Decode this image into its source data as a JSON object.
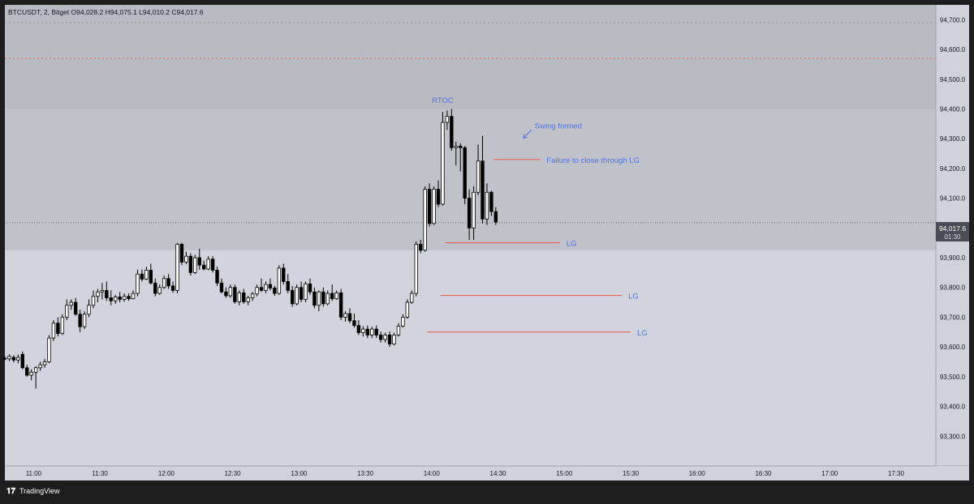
{
  "header": {
    "symbol": "BTCUSDT",
    "interval": "2",
    "exchange": "Bitget",
    "ohlc": "O94,028.2  H94,075.1  L94,010.2  C94,017.6"
  },
  "footer": {
    "brand": "TradingView"
  },
  "colors": {
    "chart_bg": "#d1d4dc",
    "upper_zone": "#c0c2ca",
    "top_zone": "#b9bbc3",
    "axis_bg": "#cfd2da",
    "annotation_blue": "#4a72e8",
    "level_red": "#ef5350",
    "candle_up_fill": "#ffffff",
    "candle_down_fill": "#000000",
    "candle_stroke": "#000000"
  },
  "chart_data": {
    "type": "candlestick",
    "ylim": [
      93200,
      94750
    ],
    "xlim": [
      "10:47",
      "17:48"
    ],
    "price_ticks": [
      "94,700.0",
      "94,600.0",
      "94,500.0",
      "94,400.0",
      "94,300.0",
      "94,200.0",
      "94,100.0",
      "94,000.0",
      "93,900.0",
      "93,800.0",
      "93,700.0",
      "93,600.0",
      "93,500.0",
      "93,400.0",
      "93,300.0"
    ],
    "price_tick_values": [
      94700,
      94600,
      94500,
      94400,
      94300,
      94200,
      94100,
      94000,
      93900,
      93800,
      93700,
      93600,
      93500,
      93400,
      93300
    ],
    "time_ticks": [
      "11:00",
      "11:30",
      "12:00",
      "12:30",
      "13:00",
      "13:30",
      "14:00",
      "14:30",
      "15:00",
      "15:30",
      "16:00",
      "16:30",
      "17:00",
      "17:30"
    ],
    "time_tick_values": [
      "11:00",
      "11:30",
      "12:00",
      "12:30",
      "13:00",
      "13:30",
      "14:00",
      "14:30",
      "15:00",
      "15:30",
      "16:00",
      "16:30",
      "17:00",
      "17:30"
    ],
    "last_price": {
      "label": "94,017.6",
      "countdown": "01:30",
      "value": 94017.6
    },
    "zones": [
      {
        "name": "top-zone",
        "from": 94400,
        "to": 94750
      },
      {
        "name": "upper-zone",
        "from": 93925,
        "to": 94400
      }
    ],
    "dashed_levels": [
      94690,
      94570
    ],
    "levels": [
      {
        "label": "LG",
        "price": 93950,
        "from": "14:06",
        "to": "14:58"
      },
      {
        "label": "LG",
        "price": 93773,
        "from": "14:04",
        "to": "15:26"
      },
      {
        "label": "LG",
        "price": 93650,
        "from": "13:58",
        "to": "15:30"
      },
      {
        "label": "",
        "price": 94230,
        "from": "14:28",
        "to": "14:49"
      }
    ],
    "annotations": [
      {
        "text": "RTOC",
        "time": "14:05",
        "price": 94420
      },
      {
        "text": "Swing formed",
        "time": "14:40",
        "price": 94335
      },
      {
        "text": "Failure to close through LG",
        "time": "14:49",
        "price": 94230
      }
    ],
    "candles": [
      {
        "t": "10:47",
        "o": 93562,
        "h": 93568,
        "l": 93555,
        "c": 93560
      },
      {
        "t": "10:49",
        "o": 93560,
        "h": 93575,
        "l": 93552,
        "c": 93568
      },
      {
        "t": "10:51",
        "o": 93565,
        "h": 93572,
        "l": 93548,
        "c": 93556
      },
      {
        "t": "10:53",
        "o": 93556,
        "h": 93575,
        "l": 93545,
        "c": 93565
      },
      {
        "t": "10:55",
        "o": 93575,
        "h": 93585,
        "l": 93525,
        "c": 93530
      },
      {
        "t": "10:57",
        "o": 93530,
        "h": 93540,
        "l": 93500,
        "c": 93505
      },
      {
        "t": "10:59",
        "o": 93505,
        "h": 93525,
        "l": 93488,
        "c": 93515
      },
      {
        "t": "11:01",
        "o": 93515,
        "h": 93535,
        "l": 93460,
        "c": 93530
      },
      {
        "t": "11:03",
        "o": 93530,
        "h": 93550,
        "l": 93520,
        "c": 93540
      },
      {
        "t": "11:05",
        "o": 93540,
        "h": 93560,
        "l": 93530,
        "c": 93550
      },
      {
        "t": "11:07",
        "o": 93550,
        "h": 93640,
        "l": 93545,
        "c": 93630
      },
      {
        "t": "11:09",
        "o": 93630,
        "h": 93690,
        "l": 93620,
        "c": 93680
      },
      {
        "t": "11:11",
        "o": 93680,
        "h": 93700,
        "l": 93635,
        "c": 93645
      },
      {
        "t": "11:13",
        "o": 93645,
        "h": 93710,
        "l": 93640,
        "c": 93700
      },
      {
        "t": "11:15",
        "o": 93700,
        "h": 93760,
        "l": 93690,
        "c": 93740
      },
      {
        "t": "11:17",
        "o": 93740,
        "h": 93760,
        "l": 93725,
        "c": 93750
      },
      {
        "t": "11:19",
        "o": 93750,
        "h": 93765,
        "l": 93705,
        "c": 93710
      },
      {
        "t": "11:21",
        "o": 93710,
        "h": 93725,
        "l": 93650,
        "c": 93668
      },
      {
        "t": "11:23",
        "o": 93668,
        "h": 93720,
        "l": 93660,
        "c": 93710
      },
      {
        "t": "11:25",
        "o": 93710,
        "h": 93760,
        "l": 93700,
        "c": 93740
      },
      {
        "t": "11:27",
        "o": 93740,
        "h": 93790,
        "l": 93730,
        "c": 93770
      },
      {
        "t": "11:29",
        "o": 93770,
        "h": 93795,
        "l": 93750,
        "c": 93785
      },
      {
        "t": "11:31",
        "o": 93785,
        "h": 93815,
        "l": 93760,
        "c": 93790
      },
      {
        "t": "11:33",
        "o": 93790,
        "h": 93820,
        "l": 93755,
        "c": 93765
      },
      {
        "t": "11:35",
        "o": 93765,
        "h": 93790,
        "l": 93740,
        "c": 93755
      },
      {
        "t": "11:37",
        "o": 93755,
        "h": 93775,
        "l": 93745,
        "c": 93768
      },
      {
        "t": "11:39",
        "o": 93768,
        "h": 93785,
        "l": 93750,
        "c": 93760
      },
      {
        "t": "11:41",
        "o": 93760,
        "h": 93780,
        "l": 93752,
        "c": 93770
      },
      {
        "t": "11:43",
        "o": 93770,
        "h": 93780,
        "l": 93755,
        "c": 93762
      },
      {
        "t": "11:45",
        "o": 93762,
        "h": 93790,
        "l": 93760,
        "c": 93780
      },
      {
        "t": "11:47",
        "o": 93780,
        "h": 93860,
        "l": 93770,
        "c": 93845
      },
      {
        "t": "11:49",
        "o": 93845,
        "h": 93860,
        "l": 93820,
        "c": 93828
      },
      {
        "t": "11:51",
        "o": 93828,
        "h": 93870,
        "l": 93825,
        "c": 93858
      },
      {
        "t": "11:53",
        "o": 93858,
        "h": 93880,
        "l": 93810,
        "c": 93815
      },
      {
        "t": "11:55",
        "o": 93815,
        "h": 93830,
        "l": 93770,
        "c": 93780
      },
      {
        "t": "11:57",
        "o": 93780,
        "h": 93810,
        "l": 93775,
        "c": 93800
      },
      {
        "t": "11:59",
        "o": 93800,
        "h": 93840,
        "l": 93795,
        "c": 93830
      },
      {
        "t": "12:01",
        "o": 93830,
        "h": 93845,
        "l": 93795,
        "c": 93805
      },
      {
        "t": "12:03",
        "o": 93805,
        "h": 93820,
        "l": 93782,
        "c": 93790
      },
      {
        "t": "12:05",
        "o": 93790,
        "h": 93950,
        "l": 93780,
        "c": 93945
      },
      {
        "t": "12:07",
        "o": 93945,
        "h": 93950,
        "l": 93875,
        "c": 93885
      },
      {
        "t": "12:09",
        "o": 93885,
        "h": 93920,
        "l": 93878,
        "c": 93905
      },
      {
        "t": "12:11",
        "o": 93905,
        "h": 93915,
        "l": 93840,
        "c": 93850
      },
      {
        "t": "12:13",
        "o": 93850,
        "h": 93910,
        "l": 93845,
        "c": 93900
      },
      {
        "t": "12:15",
        "o": 93900,
        "h": 93930,
        "l": 93860,
        "c": 93875
      },
      {
        "t": "12:17",
        "o": 93875,
        "h": 93890,
        "l": 93858,
        "c": 93862
      },
      {
        "t": "12:19",
        "o": 93862,
        "h": 93905,
        "l": 93858,
        "c": 93895
      },
      {
        "t": "12:21",
        "o": 93895,
        "h": 93905,
        "l": 93850,
        "c": 93858
      },
      {
        "t": "12:23",
        "o": 93858,
        "h": 93870,
        "l": 93805,
        "c": 93815
      },
      {
        "t": "12:25",
        "o": 93815,
        "h": 93830,
        "l": 93780,
        "c": 93785
      },
      {
        "t": "12:27",
        "o": 93785,
        "h": 93800,
        "l": 93765,
        "c": 93772
      },
      {
        "t": "12:29",
        "o": 93772,
        "h": 93810,
        "l": 93765,
        "c": 93800
      },
      {
        "t": "12:31",
        "o": 93800,
        "h": 93810,
        "l": 93745,
        "c": 93752
      },
      {
        "t": "12:33",
        "o": 93752,
        "h": 93790,
        "l": 93740,
        "c": 93782
      },
      {
        "t": "12:35",
        "o": 93782,
        "h": 93795,
        "l": 93745,
        "c": 93752
      },
      {
        "t": "12:37",
        "o": 93752,
        "h": 93772,
        "l": 93740,
        "c": 93765
      },
      {
        "t": "12:39",
        "o": 93765,
        "h": 93785,
        "l": 93755,
        "c": 93778
      },
      {
        "t": "12:41",
        "o": 93778,
        "h": 93810,
        "l": 93770,
        "c": 93800
      },
      {
        "t": "12:43",
        "o": 93800,
        "h": 93830,
        "l": 93785,
        "c": 93790
      },
      {
        "t": "12:45",
        "o": 93790,
        "h": 93820,
        "l": 93780,
        "c": 93810
      },
      {
        "t": "12:47",
        "o": 93810,
        "h": 93830,
        "l": 93790,
        "c": 93798
      },
      {
        "t": "12:49",
        "o": 93798,
        "h": 93805,
        "l": 93772,
        "c": 93780
      },
      {
        "t": "12:51",
        "o": 93780,
        "h": 93875,
        "l": 93775,
        "c": 93865
      },
      {
        "t": "12:53",
        "o": 93865,
        "h": 93880,
        "l": 93810,
        "c": 93820
      },
      {
        "t": "12:55",
        "o": 93820,
        "h": 93845,
        "l": 93780,
        "c": 93790
      },
      {
        "t": "12:57",
        "o": 93790,
        "h": 93805,
        "l": 93735,
        "c": 93745
      },
      {
        "t": "12:59",
        "o": 93745,
        "h": 93810,
        "l": 93740,
        "c": 93800
      },
      {
        "t": "13:01",
        "o": 93800,
        "h": 93820,
        "l": 93750,
        "c": 93760
      },
      {
        "t": "13:03",
        "o": 93760,
        "h": 93820,
        "l": 93750,
        "c": 93812
      },
      {
        "t": "13:05",
        "o": 93812,
        "h": 93830,
        "l": 93775,
        "c": 93785
      },
      {
        "t": "13:07",
        "o": 93785,
        "h": 93800,
        "l": 93730,
        "c": 93740
      },
      {
        "t": "13:09",
        "o": 93740,
        "h": 93790,
        "l": 93720,
        "c": 93785
      },
      {
        "t": "13:11",
        "o": 93785,
        "h": 93800,
        "l": 93735,
        "c": 93745
      },
      {
        "t": "13:13",
        "o": 93745,
        "h": 93790,
        "l": 93740,
        "c": 93780
      },
      {
        "t": "13:15",
        "o": 93780,
        "h": 93810,
        "l": 93755,
        "c": 93762
      },
      {
        "t": "13:17",
        "o": 93762,
        "h": 93790,
        "l": 93758,
        "c": 93782
      },
      {
        "t": "13:19",
        "o": 93782,
        "h": 93795,
        "l": 93690,
        "c": 93700
      },
      {
        "t": "13:21",
        "o": 93700,
        "h": 93720,
        "l": 93685,
        "c": 93712
      },
      {
        "t": "13:23",
        "o": 93712,
        "h": 93730,
        "l": 93680,
        "c": 93688
      },
      {
        "t": "13:25",
        "o": 93688,
        "h": 93712,
        "l": 93665,
        "c": 93672
      },
      {
        "t": "13:27",
        "o": 93672,
        "h": 93690,
        "l": 93640,
        "c": 93648
      },
      {
        "t": "13:29",
        "o": 93648,
        "h": 93670,
        "l": 93635,
        "c": 93660
      },
      {
        "t": "13:31",
        "o": 93660,
        "h": 93672,
        "l": 93630,
        "c": 93640
      },
      {
        "t": "13:33",
        "o": 93640,
        "h": 93668,
        "l": 93630,
        "c": 93660
      },
      {
        "t": "13:35",
        "o": 93660,
        "h": 93672,
        "l": 93630,
        "c": 93640
      },
      {
        "t": "13:37",
        "o": 93640,
        "h": 93652,
        "l": 93615,
        "c": 93625
      },
      {
        "t": "13:39",
        "o": 93625,
        "h": 93648,
        "l": 93615,
        "c": 93640
      },
      {
        "t": "13:41",
        "o": 93640,
        "h": 93652,
        "l": 93600,
        "c": 93610
      },
      {
        "t": "13:43",
        "o": 93610,
        "h": 93648,
        "l": 93605,
        "c": 93640
      },
      {
        "t": "13:45",
        "o": 93640,
        "h": 93680,
        "l": 93635,
        "c": 93670
      },
      {
        "t": "13:47",
        "o": 93670,
        "h": 93710,
        "l": 93665,
        "c": 93700
      },
      {
        "t": "13:49",
        "o": 93700,
        "h": 93760,
        "l": 93695,
        "c": 93750
      },
      {
        "t": "13:51",
        "o": 93750,
        "h": 93790,
        "l": 93745,
        "c": 93780
      },
      {
        "t": "13:53",
        "o": 93780,
        "h": 93955,
        "l": 93770,
        "c": 93945
      },
      {
        "t": "13:55",
        "o": 93945,
        "h": 93960,
        "l": 93915,
        "c": 93925
      },
      {
        "t": "13:57",
        "o": 93925,
        "h": 94140,
        "l": 93920,
        "c": 94130
      },
      {
        "t": "13:59",
        "o": 94130,
        "h": 94150,
        "l": 94005,
        "c": 94015
      },
      {
        "t": "14:01",
        "o": 94015,
        "h": 94140,
        "l": 94010,
        "c": 94130
      },
      {
        "t": "14:03",
        "o": 94130,
        "h": 94160,
        "l": 94070,
        "c": 94080
      },
      {
        "t": "14:05",
        "o": 94080,
        "h": 94390,
        "l": 94075,
        "c": 94355
      },
      {
        "t": "14:07",
        "o": 94355,
        "h": 94395,
        "l": 94330,
        "c": 94375
      },
      {
        "t": "14:09",
        "o": 94375,
        "h": 94400,
        "l": 94260,
        "c": 94270
      },
      {
        "t": "14:11",
        "o": 94270,
        "h": 94290,
        "l": 94210,
        "c": 94275
      },
      {
        "t": "14:13",
        "o": 94275,
        "h": 94285,
        "l": 94190,
        "c": 94270
      },
      {
        "t": "14:15",
        "o": 94270,
        "h": 94275,
        "l": 94080,
        "c": 94100
      },
      {
        "t": "14:17",
        "o": 94100,
        "h": 94130,
        "l": 93960,
        "c": 94000
      },
      {
        "t": "14:19",
        "o": 94000,
        "h": 94140,
        "l": 93960,
        "c": 94120
      },
      {
        "t": "14:21",
        "o": 94120,
        "h": 94280,
        "l": 94110,
        "c": 94225
      },
      {
        "t": "14:23",
        "o": 94225,
        "h": 94310,
        "l": 94015,
        "c": 94030
      },
      {
        "t": "14:25",
        "o": 94030,
        "h": 94150,
        "l": 94010,
        "c": 94120
      },
      {
        "t": "14:27",
        "o": 94120,
        "h": 94125,
        "l": 94040,
        "c": 94055
      },
      {
        "t": "14:29",
        "o": 94055,
        "h": 94070,
        "l": 94010,
        "c": 94020
      }
    ]
  }
}
